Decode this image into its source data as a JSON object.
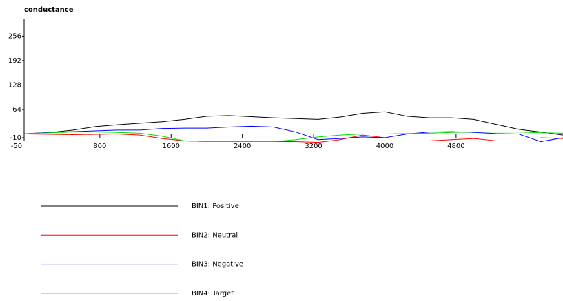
{
  "chart_data": {
    "type": "line",
    "title": "conductance",
    "x": [
      -50,
      0,
      250,
      500,
      750,
      1000,
      1250,
      1500,
      1750,
      2000,
      2250,
      2500,
      2750,
      3000,
      3250,
      3500,
      3750,
      4000,
      4250,
      4500,
      4750,
      5000,
      5250,
      5500,
      5750,
      6000
    ],
    "series": [
      {
        "name": "BIN1: Positive",
        "color": "#000000",
        "values": [
          0,
          1,
          4,
          10,
          19,
          24,
          28,
          32,
          38,
          46,
          48,
          45,
          42,
          40,
          38,
          44,
          54,
          58,
          46,
          42,
          42,
          38,
          25,
          12,
          5,
          -3
        ]
      },
      {
        "name": "BIN2: Neutral",
        "color": "#ff0000",
        "values": [
          0,
          0,
          -1,
          -2,
          -1,
          0,
          -3,
          -12,
          -18,
          -20,
          -20,
          -20,
          -20,
          -20,
          -22,
          -15,
          -3,
          -10,
          null,
          -18,
          -15,
          -12,
          -18,
          null,
          -10,
          -12
        ]
      },
      {
        "name": "BIN3: Negative",
        "color": "#0000ff",
        "values": [
          0,
          1,
          4,
          6,
          8,
          10,
          10,
          14,
          15,
          15,
          18,
          20,
          18,
          5,
          -15,
          -12,
          -8,
          -10,
          0,
          5,
          6,
          4,
          1,
          0,
          -20,
          -10
        ]
      },
      {
        "name": "BIN4: Target",
        "color": "#00dd00",
        "values": [
          0,
          1,
          3,
          5,
          5,
          4,
          2,
          -6,
          -18,
          -20,
          -20,
          -20,
          -20,
          -15,
          -8,
          -3,
          0,
          0,
          1,
          2,
          4,
          5,
          5,
          5,
          3,
          2
        ]
      }
    ],
    "xlim": [
      -50,
      6000
    ],
    "xticks": [
      -50,
      800,
      1600,
      2400,
      3200,
      4000,
      4800
    ],
    "ylim": [
      -10,
      300
    ],
    "yticks": [
      -10,
      64,
      128,
      192,
      256
    ]
  }
}
